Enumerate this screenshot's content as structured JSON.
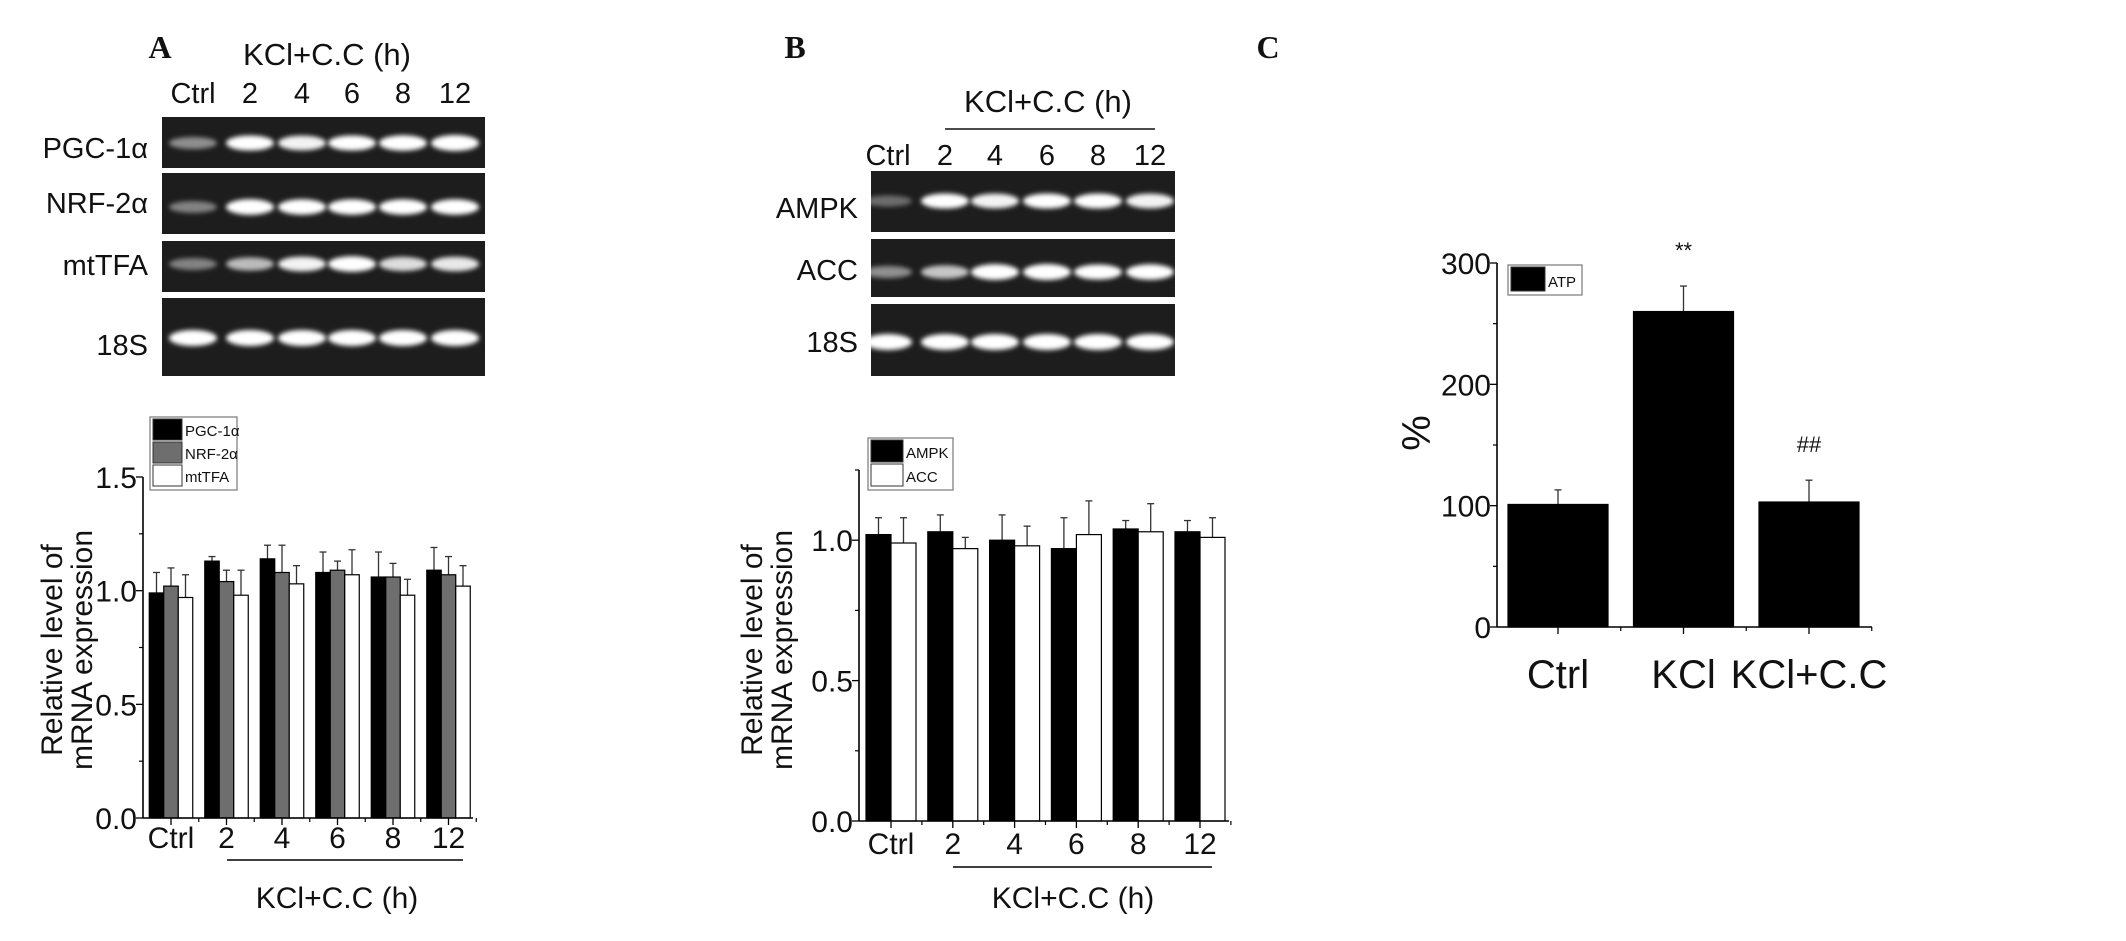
{
  "panels": {
    "A": {
      "letter": "A",
      "header": "KCl+C.C (h)",
      "lanes": [
        "Ctrl",
        "2",
        "4",
        "6",
        "8",
        "12"
      ],
      "gels": [
        {
          "label": "PGC-1α",
          "intensity": [
            0.35,
            0.85,
            0.8,
            0.85,
            0.9,
            1.0
          ]
        },
        {
          "label": "NRF-2α",
          "intensity": [
            0.3,
            0.95,
            0.9,
            0.9,
            0.9,
            0.9
          ]
        },
        {
          "label": "mtTFA",
          "intensity": [
            0.3,
            0.55,
            0.8,
            0.9,
            0.7,
            0.75
          ]
        },
        {
          "label": "18S",
          "intensity": [
            1,
            1,
            1,
            1,
            1,
            1
          ]
        }
      ]
    },
    "B": {
      "letter": "B",
      "header": "KCl+C.C (h)",
      "lanes": [
        "Ctrl",
        "2",
        "4",
        "6",
        "8",
        "12"
      ],
      "gels": [
        {
          "label": "AMPK",
          "intensity": [
            0.2,
            0.85,
            0.8,
            0.85,
            0.85,
            0.8
          ]
        },
        {
          "label": "ACC",
          "intensity": [
            0.35,
            0.6,
            0.95,
            1.0,
            0.85,
            0.9
          ]
        },
        {
          "label": "18S",
          "intensity": [
            1,
            1,
            1,
            1,
            1,
            1
          ]
        }
      ]
    },
    "C": {
      "letter": "C"
    }
  },
  "chart_data": [
    {
      "type": "bar",
      "categories": [
        "Ctrl",
        "2",
        "4",
        "6",
        "8",
        "12"
      ],
      "series": [
        {
          "name": "PGC-1α",
          "color": "#000000",
          "values": [
            0.99,
            1.13,
            1.14,
            1.08,
            1.06,
            1.09
          ],
          "errors": [
            0.09,
            0.02,
            0.06,
            0.09,
            0.11,
            0.1
          ]
        },
        {
          "name": "NRF-2α",
          "color": "#6e6e6e",
          "values": [
            1.02,
            1.04,
            1.08,
            1.09,
            1.06,
            1.07
          ],
          "errors": [
            0.08,
            0.05,
            0.12,
            0.04,
            0.06,
            0.08
          ]
        },
        {
          "name": "mtTFA",
          "color": "#ffffff",
          "values": [
            0.97,
            0.98,
            1.03,
            1.07,
            0.98,
            1.02
          ],
          "errors": [
            0.1,
            0.11,
            0.08,
            0.11,
            0.07,
            0.09
          ]
        }
      ],
      "ylabel_lines": [
        "Relative level of",
        "mRNA expression"
      ],
      "xlabel": "KCl+C.C (h)",
      "ylim": [
        0,
        1.5
      ],
      "yticks": [
        0,
        0.5,
        1.0,
        1.5
      ],
      "ytick_labels": [
        "0.0",
        "0.5",
        "1.0",
        "1.5"
      ],
      "legend": "top-left",
      "grid": false
    },
    {
      "type": "bar",
      "categories": [
        "Ctrl",
        "2",
        "4",
        "6",
        "8",
        "12"
      ],
      "series": [
        {
          "name": "AMPK",
          "color": "#000000",
          "values": [
            1.02,
            1.03,
            1.0,
            0.97,
            1.04,
            1.03
          ],
          "errors": [
            0.06,
            0.06,
            0.09,
            0.11,
            0.03,
            0.04
          ]
        },
        {
          "name": "ACC",
          "color": "#ffffff",
          "values": [
            0.99,
            0.97,
            0.98,
            1.02,
            1.03,
            1.01
          ],
          "errors": [
            0.09,
            0.04,
            0.07,
            0.12,
            0.1,
            0.07
          ]
        }
      ],
      "ylabel_lines": [
        "Relative level of",
        "mRNA expression"
      ],
      "xlabel": "KCl+C.C (h)",
      "ylim": [
        0,
        1.25
      ],
      "yticks": [
        0,
        0.5,
        1.0
      ],
      "ytick_labels": [
        "0.0",
        "0.5",
        "1.0"
      ],
      "legend": "top-left",
      "grid": false
    },
    {
      "type": "bar",
      "categories": [
        "Ctrl",
        "KCl",
        "KCl+C.C"
      ],
      "series": [
        {
          "name": "ATP",
          "color": "#000000",
          "values": [
            101,
            260,
            103
          ],
          "errors": [
            12,
            21,
            18
          ]
        }
      ],
      "annotations": [
        "",
        "**",
        "##"
      ],
      "ylabel_lines": [
        "%"
      ],
      "xlabel": "",
      "ylim": [
        0,
        300
      ],
      "yticks": [
        0,
        100,
        200,
        300
      ],
      "ytick_labels": [
        "0",
        "100",
        "200",
        "300"
      ],
      "legend": "top-left",
      "grid": false
    }
  ]
}
